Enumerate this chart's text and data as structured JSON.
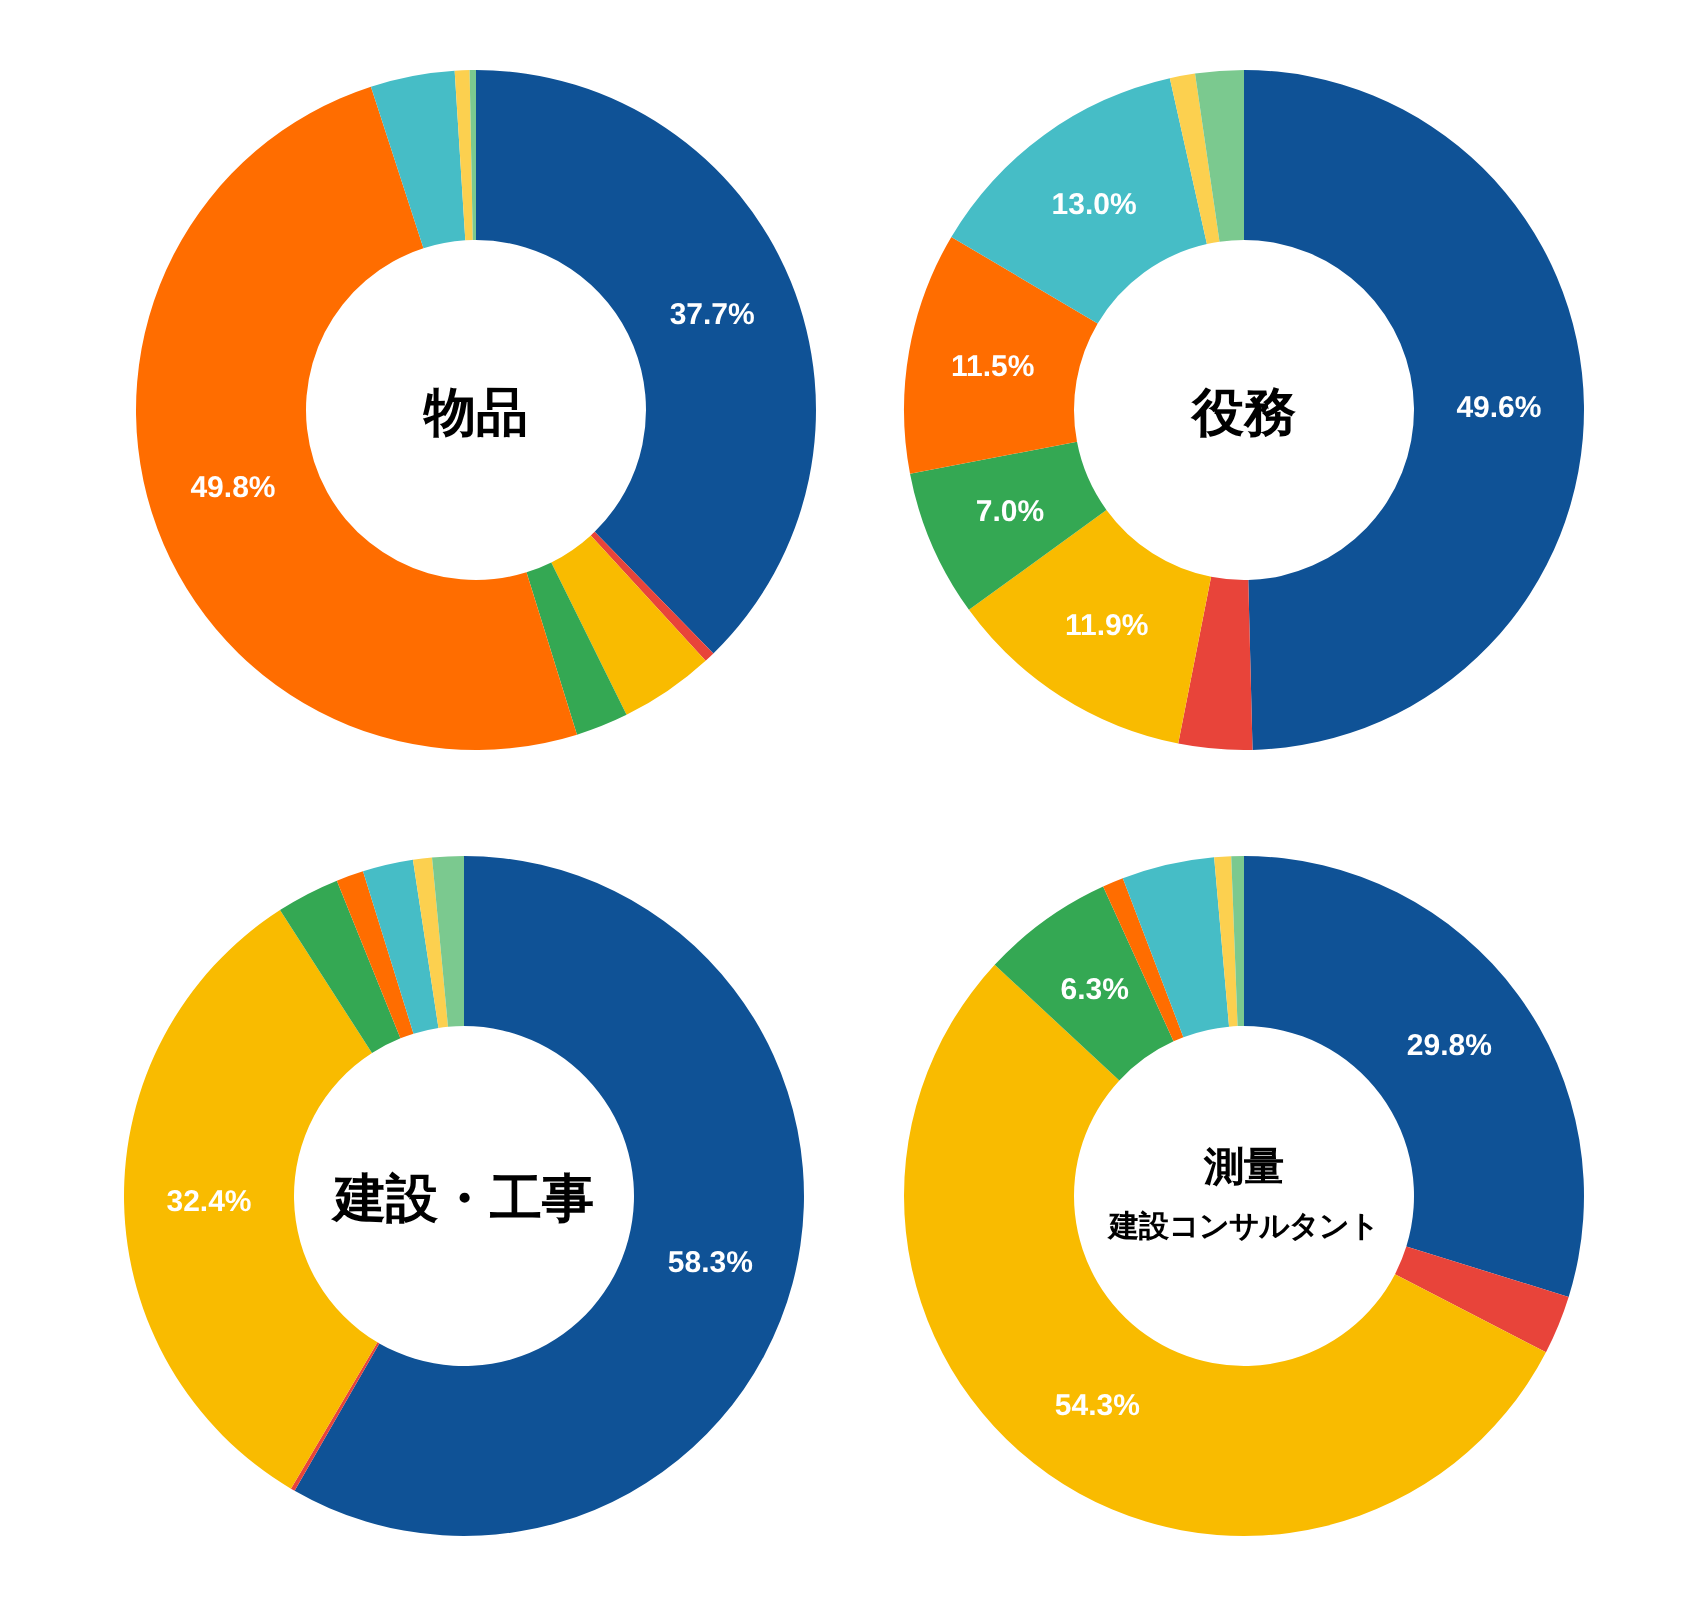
{
  "chart_data": [
    {
      "type": "donut",
      "title": "物品",
      "categories": [
        null,
        null,
        null,
        null,
        null,
        null,
        null,
        null
      ],
      "values": [
        37.7,
        0.5,
        4.5,
        2.5,
        49.8,
        4.0,
        0.7,
        0.3
      ],
      "value_labels": [
        "37.7%",
        null,
        null,
        null,
        "49.8%",
        null,
        null,
        null
      ],
      "colors": [
        "#0f5296",
        "#e8443a",
        "#f9bb00",
        "#34a853",
        "#ff6d00",
        "#46bdc6",
        "#fcd04f",
        "#7bc98f"
      ]
    },
    {
      "type": "donut",
      "title": "役務",
      "categories": [
        null,
        null,
        null,
        null,
        null,
        null,
        null,
        null
      ],
      "values": [
        49.6,
        3.5,
        11.9,
        7.0,
        11.5,
        13.0,
        1.2,
        2.3
      ],
      "value_labels": [
        "49.6%",
        null,
        "11.9%",
        "7.0%",
        "11.5%",
        "13.0%",
        null,
        null
      ],
      "colors": [
        "#0f5296",
        "#e8443a",
        "#f9bb00",
        "#34a853",
        "#ff6d00",
        "#46bdc6",
        "#fcd04f",
        "#7bc98f"
      ]
    },
    {
      "type": "donut",
      "title": "建設・工事",
      "categories": [
        null,
        null,
        null,
        null,
        null,
        null,
        null,
        null
      ],
      "values": [
        58.3,
        0.2,
        32.4,
        3.0,
        1.3,
        2.4,
        0.9,
        1.5
      ],
      "value_labels": [
        "58.3%",
        null,
        "32.4%",
        null,
        null,
        null,
        null,
        null
      ],
      "colors": [
        "#0f5296",
        "#e8443a",
        "#f9bb00",
        "#34a853",
        "#ff6d00",
        "#46bdc6",
        "#fcd04f",
        "#7bc98f"
      ]
    },
    {
      "type": "donut",
      "title": "測量",
      "subtitle": "建設コンサルタント",
      "categories": [
        null,
        null,
        null,
        null,
        null,
        null,
        null,
        null
      ],
      "values": [
        29.8,
        2.8,
        54.3,
        6.3,
        1.0,
        4.4,
        0.8,
        0.6
      ],
      "value_labels": [
        "29.8%",
        null,
        "54.3%",
        "6.3%",
        null,
        null,
        null,
        null
      ],
      "colors": [
        "#0f5296",
        "#e8443a",
        "#f9bb00",
        "#34a853",
        "#ff6d00",
        "#46bdc6",
        "#fcd04f",
        "#7bc98f"
      ]
    }
  ]
}
